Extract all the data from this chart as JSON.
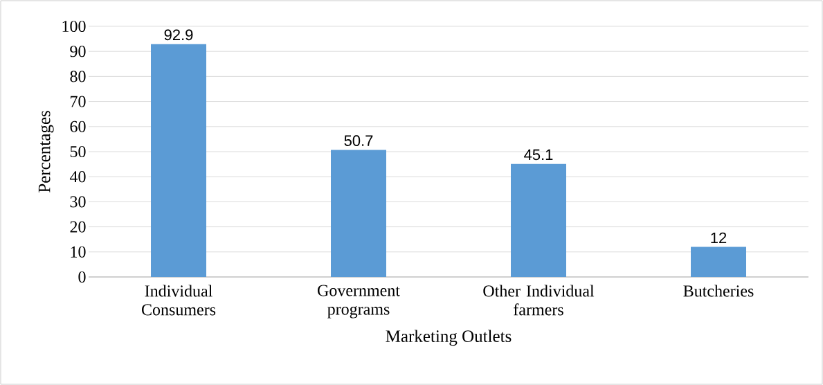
{
  "chart_data": {
    "type": "bar",
    "xlabel": "Marketing Outlets",
    "ylabel": "Percentages",
    "categories": [
      "Individual Consumers",
      "Government programs",
      "Other Individual farmers",
      "Butcheries"
    ],
    "values": [
      92.9,
      50.7,
      45.1,
      12
    ],
    "color": "#5b9bd5",
    "ylim": [
      0,
      100
    ],
    "yticks": [
      0,
      10,
      20,
      30,
      40,
      50,
      60,
      70,
      80,
      90,
      100
    ],
    "grid": "y",
    "data_labels": true
  }
}
